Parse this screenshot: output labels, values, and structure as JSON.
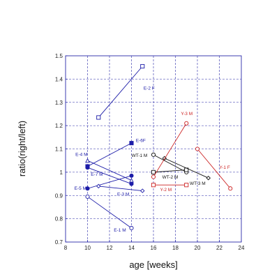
{
  "chart_data": {
    "type": "scatter",
    "xlabel": "age [weeks]",
    "ylabel": "ratio(right/left)",
    "xlim": [
      8,
      24
    ],
    "ylim": [
      0.7,
      1.5
    ],
    "xticks": [
      8,
      10,
      12,
      14,
      16,
      18,
      20,
      22,
      24
    ],
    "yticks": [
      0.7,
      0.8,
      0.9,
      1.0,
      1.1,
      1.2,
      1.3,
      1.4,
      1.5
    ],
    "xtick_labels": [
      "8",
      "10",
      "12",
      "14",
      "16",
      "18",
      "20",
      "22",
      "24"
    ],
    "ytick_labels": [
      "0.7",
      "0.8",
      "0.9",
      "1",
      "1.1",
      "1.2",
      "1.3",
      "1.4",
      "1.5"
    ],
    "grid": true,
    "colors": {
      "blue": "#1c1ca8",
      "black": "#111111",
      "red": "#cc2222",
      "grid": "#2a2aa8"
    },
    "series": [
      {
        "name": "E-2 F",
        "color": "blue",
        "marker": "square-open",
        "x": [
          11,
          15
        ],
        "y": [
          1.235,
          1.455
        ]
      },
      {
        "name": "E-6 F",
        "color": "blue",
        "marker": "square-filled",
        "x": [
          10,
          14
        ],
        "y": [
          1.025,
          1.125
        ]
      },
      {
        "name": "E-4 M",
        "color": "blue",
        "marker": "triangle-open",
        "x": [
          10,
          14
        ],
        "y": [
          1.05,
          0.965
        ]
      },
      {
        "name": "E-7 M",
        "color": "blue",
        "marker": "circle-filled",
        "x": [
          10,
          14
        ],
        "y": [
          1.02,
          0.95
        ]
      },
      {
        "name": "E-5 M",
        "color": "blue",
        "marker": "circle-filled",
        "x": [
          10,
          14
        ],
        "y": [
          0.93,
          0.985
        ]
      },
      {
        "name": "E-3 M",
        "color": "blue",
        "marker": "diamond-open",
        "x": [
          11,
          15
        ],
        "y": [
          0.94,
          0.92
        ]
      },
      {
        "name": "E-1 M",
        "color": "blue",
        "marker": "circle-open",
        "x": [
          10,
          14
        ],
        "y": [
          0.895,
          0.76
        ]
      },
      {
        "name": "WT-1 M",
        "color": "black",
        "marker": "circle-open",
        "x": [
          16,
          19
        ],
        "y": [
          1.075,
          1.0
        ]
      },
      {
        "name": "WT-2 M",
        "color": "black",
        "marker": "square-open",
        "x": [
          16,
          19
        ],
        "y": [
          1.0,
          1.01
        ]
      },
      {
        "name": "WT-3 M",
        "color": "black",
        "marker": "diamond-open",
        "x": [
          17,
          21
        ],
        "y": [
          1.06,
          0.975
        ]
      },
      {
        "name": "Y-3 M",
        "color": "red",
        "marker": "circle-open",
        "x": [
          16,
          19
        ],
        "y": [
          0.98,
          1.21
        ]
      },
      {
        "name": "Y-2 M",
        "color": "red",
        "marker": "square-open",
        "x": [
          16,
          19
        ],
        "y": [
          0.945,
          0.945
        ]
      },
      {
        "name": "Y-1 F",
        "color": "red",
        "marker": "circle-open",
        "x": [
          20,
          23
        ],
        "y": [
          1.1,
          0.93
        ]
      }
    ],
    "labels": [
      {
        "text": "E-2 F",
        "color": "blue",
        "x": 15.1,
        "y": 1.355,
        "anchor": "start"
      },
      {
        "text": "E-6F",
        "color": "blue",
        "x": 14.4,
        "y": 1.13,
        "anchor": "start"
      },
      {
        "text": "E-4 M",
        "color": "blue",
        "x": 8.9,
        "y": 1.07,
        "anchor": "start"
      },
      {
        "text": "E-7 M",
        "color": "blue",
        "x": 10.3,
        "y": 0.985,
        "anchor": "start"
      },
      {
        "text": "E-5 M",
        "color": "blue",
        "x": 8.8,
        "y": 0.925,
        "anchor": "start"
      },
      {
        "text": "E-3 M",
        "color": "blue",
        "x": 12.7,
        "y": 0.9,
        "anchor": "start"
      },
      {
        "text": "E-1 M",
        "color": "blue",
        "x": 12.4,
        "y": 0.745,
        "anchor": "start"
      },
      {
        "text": "WT-1 M",
        "color": "black",
        "x": 15.45,
        "y": 1.065,
        "anchor": "end"
      },
      {
        "text": "WT-2 M",
        "color": "black",
        "x": 16.8,
        "y": 0.972,
        "anchor": "start"
      },
      {
        "text": "WT-3 M",
        "color": "black",
        "x": 19.3,
        "y": 0.945,
        "anchor": "start"
      },
      {
        "text": "Y-3 M",
        "color": "red",
        "x": 18.5,
        "y": 1.245,
        "anchor": "start"
      },
      {
        "text": "Y-2 M",
        "color": "red",
        "x": 16.6,
        "y": 0.918,
        "anchor": "start"
      },
      {
        "text": "Y-1 F",
        "color": "red",
        "x": 22,
        "y": 1.015,
        "anchor": "start"
      }
    ]
  }
}
